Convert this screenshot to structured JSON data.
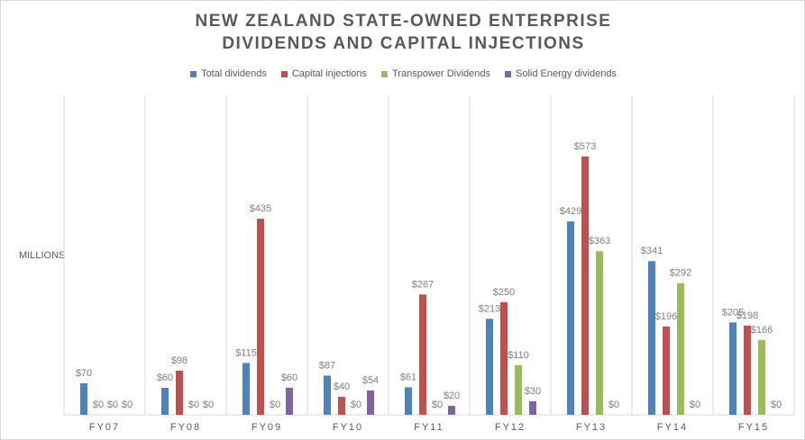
{
  "chart_data": {
    "type": "bar",
    "title": "NEW ZEALAND STATE-OWNED ENTERPRISE",
    "subtitle": "DIVIDENDS AND CAPITAL INJECTIONS",
    "ylabel": "MILLIONS",
    "xlabel": "",
    "categories": [
      "FY07",
      "FY08",
      "FY09",
      "FY10",
      "FY11",
      "FY12",
      "FY13",
      "FY14",
      "FY15"
    ],
    "series": [
      {
        "name": "Total dividends",
        "color": "#4f81bd",
        "values": [
          70,
          60,
          115,
          87,
          61,
          213,
          429,
          341,
          205
        ]
      },
      {
        "name": "Capital injections",
        "color": "#c0504d",
        "values": [
          0,
          98,
          435,
          40,
          267,
          250,
          573,
          196,
          198
        ]
      },
      {
        "name": "Transpower Dividends",
        "color": "#9bbb59",
        "values": [
          0,
          0,
          0,
          0,
          0,
          110,
          363,
          292,
          166
        ]
      },
      {
        "name": "Solid Energy dividends",
        "color": "#8064a2",
        "values": [
          0,
          0,
          60,
          54,
          20,
          30,
          0,
          0,
          0
        ]
      }
    ],
    "value_prefix": "$",
    "ylim": [
      0,
      600
    ],
    "legend": "top",
    "grid": "vertical category separators"
  }
}
